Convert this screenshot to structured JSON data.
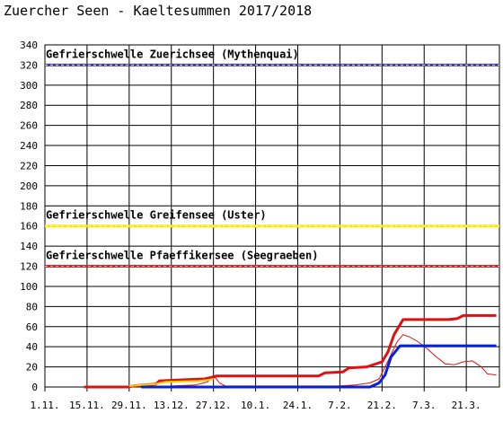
{
  "chart_data": {
    "type": "line",
    "title": "Zuercher Seen - Kaeltesummen 2017/2018",
    "xlabel": "",
    "ylabel": "",
    "ylim": [
      0,
      340
    ],
    "yticks": [
      0,
      20,
      40,
      60,
      80,
      100,
      120,
      140,
      160,
      180,
      200,
      220,
      240,
      260,
      280,
      300,
      320,
      340
    ],
    "xlim": [
      "2017-11-01",
      "2018-04-01"
    ],
    "xticks": [
      {
        "date": "2017-11-01",
        "label": "1.11."
      },
      {
        "date": "2017-11-15",
        "label": "15.11."
      },
      {
        "date": "2017-11-29",
        "label": "29.11."
      },
      {
        "date": "2017-12-13",
        "label": "13.12."
      },
      {
        "date": "2017-12-27",
        "label": "27.12."
      },
      {
        "date": "2018-01-10",
        "label": "10.1."
      },
      {
        "date": "2018-01-24",
        "label": "24.1."
      },
      {
        "date": "2018-02-07",
        "label": "7.2."
      },
      {
        "date": "2018-02-21",
        "label": "21.2."
      },
      {
        "date": "2018-03-07",
        "label": "7.3."
      },
      {
        "date": "2018-03-21",
        "label": "21.3."
      }
    ],
    "grid": true,
    "thresholds": [
      {
        "label": "Gefrierschwelle Zuerichsee (Mythenquai)",
        "value": 320,
        "color": "#3a3aa0",
        "dash_color": "#ffff66"
      },
      {
        "label": "Gefrierschwelle Greifensee (Uster)",
        "value": 160,
        "color": "#ffe600",
        "dash_color": "#ffffaa"
      },
      {
        "label": "Gefrierschwelle Pfaeffikersee (Seegraeben)",
        "value": 120,
        "color": "#dd2222",
        "dash_color": "#ffbbbb"
      }
    ],
    "series": [
      {
        "color": "#dd1111",
        "width": 3,
        "points": [
          [
            "2017-11-14",
            0
          ],
          [
            "2017-11-29",
            0
          ],
          [
            "2017-11-30",
            1
          ],
          [
            "2017-12-04",
            2
          ],
          [
            "2017-12-08",
            3
          ],
          [
            "2017-12-09",
            6
          ],
          [
            "2017-12-15",
            7
          ],
          [
            "2017-12-24",
            8
          ],
          [
            "2017-12-27",
            10
          ],
          [
            "2017-12-28",
            11
          ],
          [
            "2018-01-31",
            11
          ],
          [
            "2018-02-02",
            14
          ],
          [
            "2018-02-08",
            15
          ],
          [
            "2018-02-10",
            19
          ],
          [
            "2018-02-16",
            20
          ],
          [
            "2018-02-21",
            25
          ],
          [
            "2018-02-23",
            35
          ],
          [
            "2018-02-25",
            52
          ],
          [
            "2018-02-28",
            67
          ],
          [
            "2018-03-15",
            67
          ],
          [
            "2018-03-18",
            68
          ],
          [
            "2018-03-20",
            71
          ],
          [
            "2018-03-31",
            71
          ]
        ]
      },
      {
        "color": "#dd1111",
        "width": 1,
        "points": [
          [
            "2017-12-08",
            0
          ],
          [
            "2017-12-13",
            1
          ],
          [
            "2017-12-21",
            2
          ],
          [
            "2017-12-25",
            5
          ],
          [
            "2017-12-27",
            12
          ],
          [
            "2017-12-29",
            4
          ],
          [
            "2017-12-31",
            1
          ],
          [
            "2018-02-06",
            1
          ],
          [
            "2018-02-12",
            2
          ],
          [
            "2018-02-17",
            4
          ],
          [
            "2018-02-20",
            8
          ],
          [
            "2018-02-23",
            26
          ],
          [
            "2018-02-26",
            45
          ],
          [
            "2018-02-28",
            52
          ],
          [
            "2018-03-02",
            50
          ],
          [
            "2018-03-05",
            45
          ],
          [
            "2018-03-08",
            38
          ],
          [
            "2018-03-11",
            30
          ],
          [
            "2018-03-14",
            23
          ],
          [
            "2018-03-17",
            22
          ],
          [
            "2018-03-20",
            25
          ],
          [
            "2018-03-23",
            26
          ],
          [
            "2018-03-26",
            20
          ],
          [
            "2018-03-28",
            13
          ],
          [
            "2018-03-31",
            12
          ]
        ]
      },
      {
        "color": "#ffcc00",
        "width": 2,
        "points": [
          [
            "2017-11-29",
            1
          ],
          [
            "2017-12-08",
            3
          ],
          [
            "2017-12-11",
            5
          ],
          [
            "2017-12-22",
            6
          ],
          [
            "2017-12-25",
            7
          ],
          [
            "2017-12-27",
            8
          ]
        ]
      },
      {
        "color": "#0022dd",
        "width": 3,
        "points": [
          [
            "2017-12-03",
            0
          ],
          [
            "2018-02-17",
            0
          ],
          [
            "2018-02-20",
            4
          ],
          [
            "2018-02-22",
            12
          ],
          [
            "2018-02-24",
            30
          ],
          [
            "2018-02-27",
            41
          ],
          [
            "2018-03-31",
            41
          ]
        ]
      }
    ]
  }
}
